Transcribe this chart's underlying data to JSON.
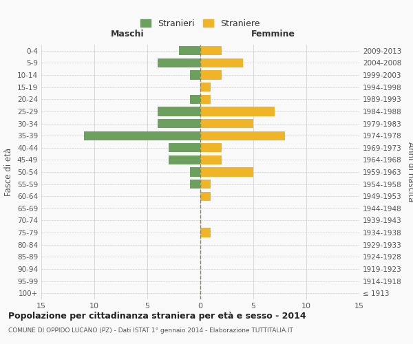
{
  "age_groups": [
    "100+",
    "95-99",
    "90-94",
    "85-89",
    "80-84",
    "75-79",
    "70-74",
    "65-69",
    "60-64",
    "55-59",
    "50-54",
    "45-49",
    "40-44",
    "35-39",
    "30-34",
    "25-29",
    "20-24",
    "15-19",
    "10-14",
    "5-9",
    "0-4"
  ],
  "birth_years": [
    "≤ 1913",
    "1914-1918",
    "1919-1923",
    "1924-1928",
    "1929-1933",
    "1934-1938",
    "1939-1943",
    "1944-1948",
    "1949-1953",
    "1954-1958",
    "1959-1963",
    "1964-1968",
    "1969-1973",
    "1974-1978",
    "1979-1983",
    "1984-1988",
    "1989-1993",
    "1994-1998",
    "1999-2003",
    "2004-2008",
    "2009-2013"
  ],
  "maschi": [
    0,
    0,
    0,
    0,
    0,
    0,
    0,
    0,
    0,
    1,
    1,
    3,
    3,
    11,
    4,
    4,
    1,
    0,
    1,
    4,
    2
  ],
  "femmine": [
    0,
    0,
    0,
    0,
    0,
    1,
    0,
    0,
    1,
    1,
    5,
    2,
    2,
    8,
    5,
    7,
    1,
    1,
    2,
    4,
    2
  ],
  "maschi_color": "#6d9f5e",
  "femmine_color": "#f0b429",
  "title": "Popolazione per cittadinanza straniera per età e sesso - 2014",
  "subtitle": "COMUNE DI OPPIDO LUCANO (PZ) - Dati ISTAT 1° gennaio 2014 - Elaborazione TUTTITALIA.IT",
  "ylabel_left": "Fasce di età",
  "ylabel_right": "Anni di nascita",
  "xlabel_left": "Maschi",
  "xlabel_right": "Femmine",
  "legend_maschi": "Stranieri",
  "legend_femmine": "Straniere",
  "xlim": 15,
  "background_color": "#f9f9f9",
  "grid_color": "#cccccc",
  "center_line_color": "#888855"
}
